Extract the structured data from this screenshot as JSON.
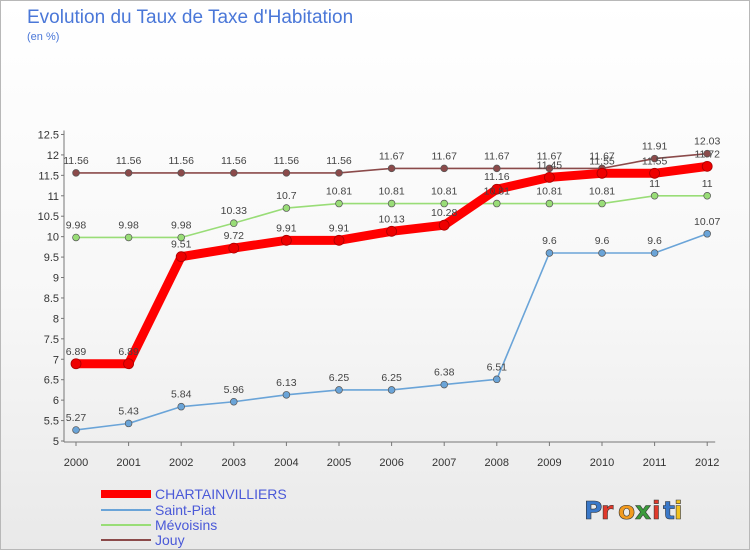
{
  "title": "Evolution du Taux de Taxe d'Habitation",
  "unit_label": "(en %)",
  "brand": "Proxiti",
  "chart_data": {
    "type": "line",
    "title": "Evolution du Taux de Taxe d'Habitation",
    "ylabel": "(en %)",
    "xlabel": "",
    "ylim": [
      5,
      12.5
    ],
    "y_ticks": [
      "5",
      "5.5",
      "6",
      "6.5",
      "7",
      "7.5",
      "8",
      "8.5",
      "9",
      "9.5",
      "10",
      "10.5",
      "11",
      "11.5",
      "12",
      "12.5"
    ],
    "x": [
      "2000",
      "2001",
      "2002",
      "2003",
      "2004",
      "2005",
      "2006",
      "2007",
      "2008",
      "2009",
      "2010",
      "2011",
      "2012"
    ],
    "grid": false,
    "legend_position": "bottom-left",
    "series": [
      {
        "name": "CHARTAINVILLIERS",
        "color": "#ff0000",
        "values": [
          6.89,
          6.89,
          9.51,
          9.72,
          9.91,
          9.91,
          10.13,
          10.28,
          11.16,
          11.45,
          11.55,
          11.55,
          11.72
        ],
        "labels": [
          "6.89",
          "6.89",
          "9.51",
          "9.72",
          "9.91",
          "9.91",
          "10.13",
          "10.28",
          "11.16",
          "11.45",
          "11.55",
          "11.55",
          "11.72"
        ]
      },
      {
        "name": "Saint-Piat",
        "color": "#6aa4d8",
        "values": [
          5.27,
          5.43,
          5.84,
          5.96,
          6.13,
          6.25,
          6.25,
          6.38,
          6.51,
          9.6,
          9.6,
          9.6,
          10.07
        ],
        "labels": [
          "5.27",
          "5.43",
          "5.84",
          "5.96",
          "6.13",
          "6.25",
          "6.25",
          "6.38",
          "6.51",
          "9.6",
          "9.6",
          "9.6",
          "10.07"
        ]
      },
      {
        "name": "Mévoisins",
        "color": "#99dd77",
        "values": [
          9.98,
          9.98,
          9.98,
          10.33,
          10.7,
          10.81,
          10.81,
          10.81,
          10.81,
          10.81,
          10.81,
          11,
          11
        ],
        "labels": [
          "9.98",
          "9.98",
          "9.98",
          "10.33",
          "10.7",
          "10.81",
          "10.81",
          "10.81",
          "10.81",
          "10.81",
          "10.81",
          "11",
          "11"
        ]
      },
      {
        "name": "Jouy",
        "color": "#8b4a4a",
        "values": [
          11.56,
          11.56,
          11.56,
          11.56,
          11.56,
          11.56,
          11.67,
          11.67,
          11.67,
          11.67,
          11.67,
          11.91,
          12.03
        ],
        "labels": [
          "11.56",
          "11.56",
          "11.56",
          "11.56",
          "11.56",
          "11.56",
          "11.67",
          "11.67",
          "11.67",
          "11.67",
          "11.67",
          "11.91",
          "12.03"
        ]
      }
    ]
  }
}
